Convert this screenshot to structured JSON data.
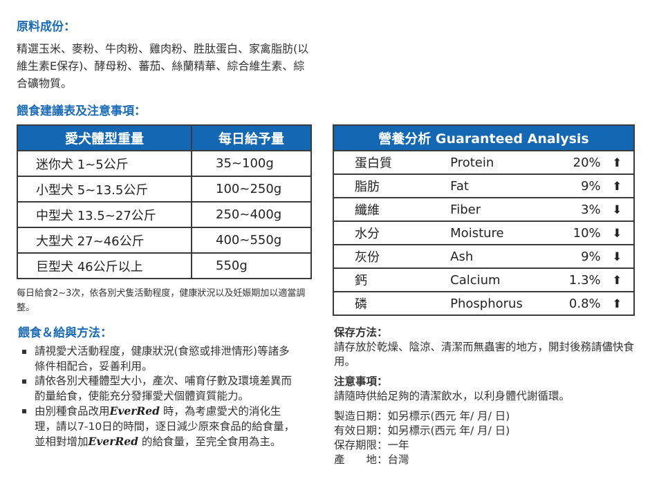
{
  "ingredients": {
    "title": "原料成份：",
    "text": "精選玉米、麥粉、牛肉粉、雞肉粉、胜肽蛋白、家禽脂肪(以維生素E保存)、酵母粉、蕃茄、絲蘭精華、綜合維生素、綜合礦物質。"
  },
  "feeding_table": {
    "title": "餵食建議表及注意事項：",
    "headers": [
      "愛犬體型重量",
      "每日給予量"
    ],
    "rows": [
      [
        "迷你犬 1~5公斤",
        "35~100g"
      ],
      [
        "小型犬 5~13.5公斤",
        "100~250g"
      ],
      [
        "中型犬 13.5~27公斤",
        "250~400g"
      ],
      [
        "大型犬 27~46公斤",
        "400~550g"
      ],
      [
        "巨型犬 46公斤以上",
        "550g"
      ]
    ],
    "note": "每日給食2~3次，依各別犬隻活動程度，健康狀況以及妊娠期加以適當調整。"
  },
  "analysis": {
    "header": "營養分析  Guaranteed Analysis",
    "rows": [
      {
        "cn": "蛋白質",
        "en": "Protein",
        "value": "20%",
        "direction": "up"
      },
      {
        "cn": "脂肪",
        "en": "Fat",
        "value": "9%",
        "direction": "up"
      },
      {
        "cn": "纖維",
        "en": "Fiber",
        "value": "3%",
        "direction": "down"
      },
      {
        "cn": "水分",
        "en": "Moisture",
        "value": "10%",
        "direction": "down"
      },
      {
        "cn": "灰份",
        "en": "Ash",
        "value": "9%",
        "direction": "down"
      },
      {
        "cn": "鈣",
        "en": "Calcium",
        "value": "1.3%",
        "direction": "up"
      },
      {
        "cn": "磷",
        "en": "Phosphorus",
        "value": "0.8%",
        "direction": "up"
      }
    ]
  },
  "method": {
    "title": "餵食＆給與方法：",
    "brand": "EverRed",
    "b1": "請視愛犬活動程度，健康狀況(食慾或排泄情形)等諸多條件相配合，妥善利用。",
    "b2": "請依各別犬種體型大小，產次、哺育仔數及環境差異而酌量給食，使能充分發揮愛犬個體資質能力。",
    "b3a": "由別種食品改用",
    "b3b": "時，為考慮愛犬的消化生理，請以7-10日的時間，逐日減少原來食品的給食量，並相對增加",
    "b3c": "的給食量，至完全食用為主。"
  },
  "storage": {
    "title": "保存方法：",
    "text": "請存放於乾燥、陰涼、清潔而無蟲害的地方，開封後務請儘快食用。"
  },
  "caution": {
    "title": "注意事項：",
    "text": "請隨時供給足夠的清潔飲水，以利身體代謝循環。"
  },
  "info": [
    "製造日期：如另標示(西元 年/ 月/ 日)",
    "有效日期：如另標示(西元 年/ 月/ 日)",
    "保存期限：一年",
    "產　　地：台灣"
  ],
  "colors": {
    "heading": "#1a6bb8",
    "table_header": "#1467b3"
  }
}
